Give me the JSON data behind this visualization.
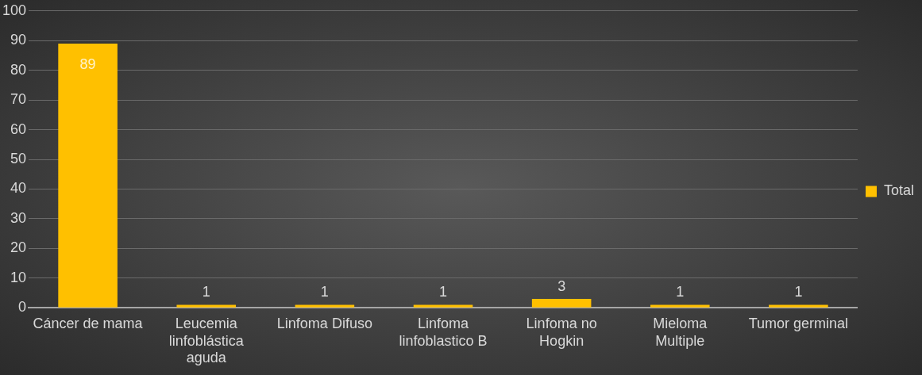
{
  "chart_data": {
    "type": "bar",
    "categories": [
      "Cáncer de mama",
      "Leucemia linfoblástica aguda",
      "Linfoma Difuso",
      "Linfoma linfoblastico B",
      "Linfoma no Hogkin",
      "Mieloma Multiple",
      "Tumor germinal"
    ],
    "series": [
      {
        "name": "Total",
        "color": "#ffc000",
        "values": [
          89,
          1,
          1,
          1,
          3,
          1,
          1
        ]
      }
    ],
    "ylim": [
      0,
      100
    ],
    "yticks": [
      0,
      10,
      20,
      30,
      40,
      50,
      60,
      70,
      80,
      90,
      100
    ],
    "grid": "y",
    "legend": "right",
    "data_labels": true
  }
}
